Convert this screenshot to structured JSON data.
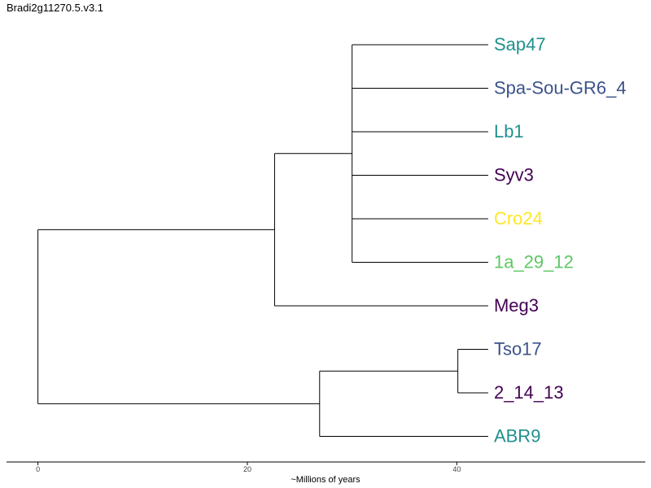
{
  "title": "Bradi2g11270.5.v3.1",
  "chart_data": {
    "type": "phylogenetic-tree",
    "xlabel": "~Millions of years",
    "xlim": [
      -3,
      58
    ],
    "xticks": [
      0,
      20,
      40
    ],
    "tips": [
      {
        "label": "Sap47",
        "color": "#21908c"
      },
      {
        "label": "Spa-Sou-GR6_4",
        "color": "#3b528b"
      },
      {
        "label": "Lb1",
        "color": "#21908c"
      },
      {
        "label": "Syv3",
        "color": "#440154"
      },
      {
        "label": "Cro24",
        "color": "#fde725"
      },
      {
        "label": "1a_29_12",
        "color": "#5dc863"
      },
      {
        "label": "Meg3",
        "color": "#440154"
      },
      {
        "label": "Tso17",
        "color": "#3b528b"
      },
      {
        "label": "2_14_13",
        "color": "#440154"
      },
      {
        "label": "ABR9",
        "color": "#21908c"
      }
    ],
    "tip_age": 43.0,
    "nodes": [
      {
        "id": "root",
        "x": 0,
        "children": [
          "A",
          "B"
        ]
      },
      {
        "id": "A",
        "x": 22.6,
        "children": [
          "C",
          "t6"
        ]
      },
      {
        "id": "C",
        "x": 30.0,
        "children": [
          "t0",
          "t1",
          "t2",
          "t3",
          "t4",
          "t5"
        ]
      },
      {
        "id": "B",
        "x": 26.9,
        "children": [
          "D",
          "t9"
        ]
      },
      {
        "id": "D",
        "x": 40.1,
        "children": [
          "t7",
          "t8"
        ]
      }
    ]
  }
}
